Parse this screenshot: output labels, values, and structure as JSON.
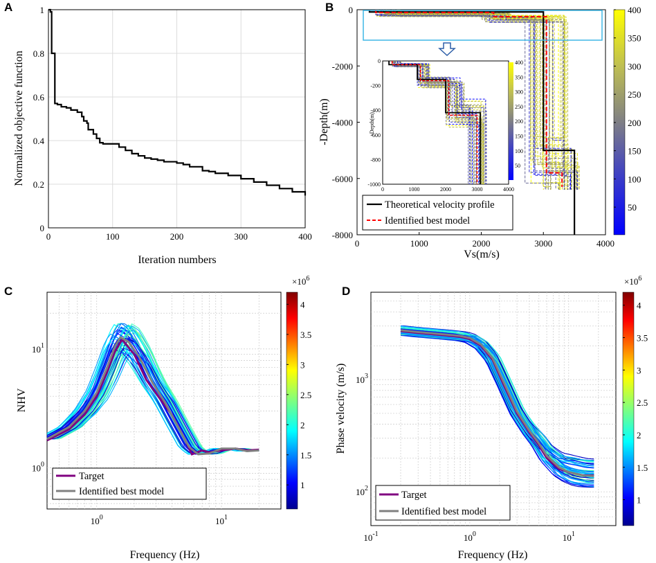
{
  "panels": {
    "A": {
      "label": "A"
    },
    "B": {
      "label": "B"
    },
    "C": {
      "label": "C"
    },
    "D": {
      "label": "D"
    }
  },
  "colors": {
    "black": "#000000",
    "red_dash": "#ff0000",
    "target": "#800080",
    "best_model": "#808080",
    "inset_frame": "#3fb7e6",
    "grid": "#d9d9d9"
  },
  "chart_data": [
    {
      "panel": "A",
      "type": "line",
      "xlabel": "Iteration numbers",
      "ylabel": "Normalized objective function",
      "xlim": [
        0,
        400
      ],
      "ylim": [
        0,
        1
      ],
      "xticks": [
        "0",
        "100",
        "200",
        "300",
        "400"
      ],
      "yticks": [
        "0",
        "0.2",
        "0.4",
        "0.6",
        "0.8",
        "1"
      ],
      "grid": true,
      "series": [
        {
          "name": "objective",
          "x": [
            0,
            3,
            5,
            8,
            10,
            14,
            20,
            28,
            35,
            45,
            52,
            55,
            60,
            62,
            70,
            75,
            80,
            85,
            100,
            110,
            120,
            130,
            140,
            150,
            160,
            170,
            180,
            200,
            210,
            220,
            240,
            250,
            260,
            280,
            300,
            320,
            340,
            360,
            380,
            400
          ],
          "y": [
            1.0,
            0.99,
            0.8,
            0.8,
            0.57,
            0.565,
            0.555,
            0.55,
            0.54,
            0.53,
            0.51,
            0.49,
            0.48,
            0.45,
            0.43,
            0.41,
            0.39,
            0.385,
            0.385,
            0.37,
            0.355,
            0.34,
            0.33,
            0.32,
            0.315,
            0.31,
            0.303,
            0.297,
            0.29,
            0.28,
            0.262,
            0.258,
            0.25,
            0.24,
            0.225,
            0.21,
            0.195,
            0.18,
            0.165,
            0.148
          ]
        }
      ]
    },
    {
      "panel": "B",
      "type": "line",
      "xlabel": "Vs(m/s)",
      "ylabel": "-Depth(m)",
      "xlim": [
        0,
        4000
      ],
      "ylim": [
        -8000,
        0
      ],
      "xticks": [
        "0",
        "1000",
        "2000",
        "3000",
        "4000"
      ],
      "yticks": [
        "0",
        "-2000",
        "-4000",
        "-6000",
        "-8000"
      ],
      "colorbar": {
        "min": 1,
        "max": 400,
        "ticks": [
          "50",
          "100",
          "150",
          "200",
          "250",
          "300",
          "350",
          "400"
        ],
        "colormap": "parula"
      },
      "legend": [
        "Theoretical velocity profile",
        "Identified best model"
      ],
      "series": [
        {
          "name": "Theoretical velocity profile",
          "vs": [
            200,
            200,
            3000,
            3000,
            3500,
            3500
          ],
          "depth": [
            0,
            -80,
            -80,
            -5000,
            -5000,
            -8000
          ]
        },
        {
          "name": "Identified best model",
          "vs": [
            300,
            300,
            2200,
            2200,
            3050,
            3050,
            3300,
            3300
          ],
          "depth": [
            0,
            -100,
            -100,
            -250,
            -250,
            -5800,
            -5800,
            -6300
          ]
        }
      ],
      "inset": {
        "xlim": [
          0,
          4000
        ],
        "ylim": [
          -1000,
          0
        ],
        "xticks": [
          "0",
          "1000",
          "2000",
          "3000",
          "4000"
        ],
        "yticks": [
          "0",
          "-200",
          "-400",
          "-600",
          "-800",
          "-1000"
        ],
        "ylabel": "-Depth(m)",
        "colorbar_ticks": [
          "50",
          "100",
          "150",
          "200",
          "250",
          "300",
          "350",
          "400"
        ],
        "series": [
          {
            "name": "Theoretical velocity profile",
            "vs": [
              200,
              200,
              1100,
              1100,
              2000,
              2000,
              3100,
              3100
            ],
            "depth": [
              0,
              -30,
              -30,
              -150,
              -150,
              -420,
              -420,
              -1000
            ]
          },
          {
            "name": "Identified best model",
            "vs": [
              300,
              300,
              1200,
              1200,
              2100,
              2100,
              3000,
              3000
            ],
            "depth": [
              0,
              -30,
              -30,
              -160,
              -160,
              -440,
              -440,
              -1000
            ]
          }
        ]
      }
    },
    {
      "panel": "C",
      "type": "line",
      "xlabel": "Frequency (Hz)",
      "ylabel": "NHV",
      "xscale": "log",
      "yscale": "log",
      "xlim": [
        0.4,
        30
      ],
      "ylim": [
        0.45,
        30
      ],
      "xtick_labels": [
        {
          "base": "10",
          "exp": "0"
        },
        {
          "base": "10",
          "exp": "1"
        }
      ],
      "ytick_labels": [
        {
          "base": "10",
          "exp": "0"
        },
        {
          "base": "10",
          "exp": "1"
        }
      ],
      "colorbar": {
        "multiplier": "×10",
        "multiplier_exp": "6",
        "ticks": [
          "1",
          "1.5",
          "2",
          "2.5",
          "3",
          "3.5",
          "4"
        ],
        "colormap": "jet",
        "range": [
          0.6,
          4.2
        ]
      },
      "legend": [
        "Target",
        "Identified best model"
      ],
      "series": [
        {
          "name": "Target",
          "x": [
            0.4,
            0.6,
            0.8,
            1.0,
            1.2,
            1.4,
            1.6,
            2.0,
            2.5,
            3.0,
            4.0,
            5.0,
            5.8,
            7.0,
            8.0,
            10,
            13,
            16,
            20
          ],
          "y": [
            1.7,
            2.1,
            2.8,
            4.0,
            6.2,
            9.5,
            12.0,
            9.0,
            5.5,
            4.2,
            2.8,
            1.8,
            1.3,
            1.4,
            1.35,
            1.4,
            1.45,
            1.4,
            1.42
          ]
        },
        {
          "name": "Identified best model",
          "x": [
            0.4,
            0.6,
            0.8,
            1.0,
            1.2,
            1.4,
            1.55,
            1.8,
            2.2,
            2.8,
            3.5,
            4.5,
            5.5,
            6.5,
            8.0,
            10,
            13,
            16,
            20
          ],
          "y": [
            1.75,
            2.2,
            3.0,
            4.3,
            6.8,
            10.5,
            12.5,
            11.5,
            8.5,
            5.2,
            3.6,
            2.2,
            1.5,
            1.3,
            1.32,
            1.45,
            1.45,
            1.38,
            1.4
          ]
        }
      ]
    },
    {
      "panel": "D",
      "type": "line",
      "xlabel": "Frequency (Hz)",
      "ylabel": "Phase velocity (m/s)",
      "xscale": "log",
      "yscale": "log",
      "xlim": [
        0.1,
        30
      ],
      "ylim": [
        50,
        6000
      ],
      "xtick_labels": [
        {
          "base": "10",
          "exp": "-1"
        },
        {
          "base": "10",
          "exp": "0"
        },
        {
          "base": "10",
          "exp": "1"
        }
      ],
      "ytick_labels": [
        {
          "base": "10",
          "exp": "2"
        },
        {
          "base": "10",
          "exp": "3"
        }
      ],
      "colorbar": {
        "multiplier": "×10",
        "multiplier_exp": "6",
        "ticks": [
          "1",
          "1.5",
          "2",
          "2.5",
          "3",
          "3.5",
          "4"
        ],
        "colormap": "jet",
        "range": [
          0.6,
          4.2
        ]
      },
      "legend": [
        "Target",
        "Identified best model"
      ],
      "series": [
        {
          "name": "Target",
          "x": [
            0.2,
            0.3,
            0.5,
            0.8,
            1.0,
            1.3,
            1.7,
            2.2,
            3.0,
            4.0,
            5.0,
            6.0,
            8.0,
            10,
            14,
            18
          ],
          "y": [
            2700,
            2600,
            2500,
            2400,
            2300,
            2000,
            1500,
            900,
            500,
            340,
            260,
            200,
            160,
            150,
            140,
            140
          ]
        },
        {
          "name": "Identified best model",
          "x": [
            0.2,
            0.3,
            0.5,
            0.8,
            1.0,
            1.3,
            1.7,
            2.2,
            3.0,
            4.0,
            5.0,
            6.0,
            8.0,
            10,
            14,
            18
          ],
          "y": [
            2750,
            2650,
            2550,
            2450,
            2350,
            2050,
            1550,
            950,
            520,
            350,
            270,
            210,
            165,
            150,
            140,
            138
          ]
        }
      ]
    }
  ]
}
